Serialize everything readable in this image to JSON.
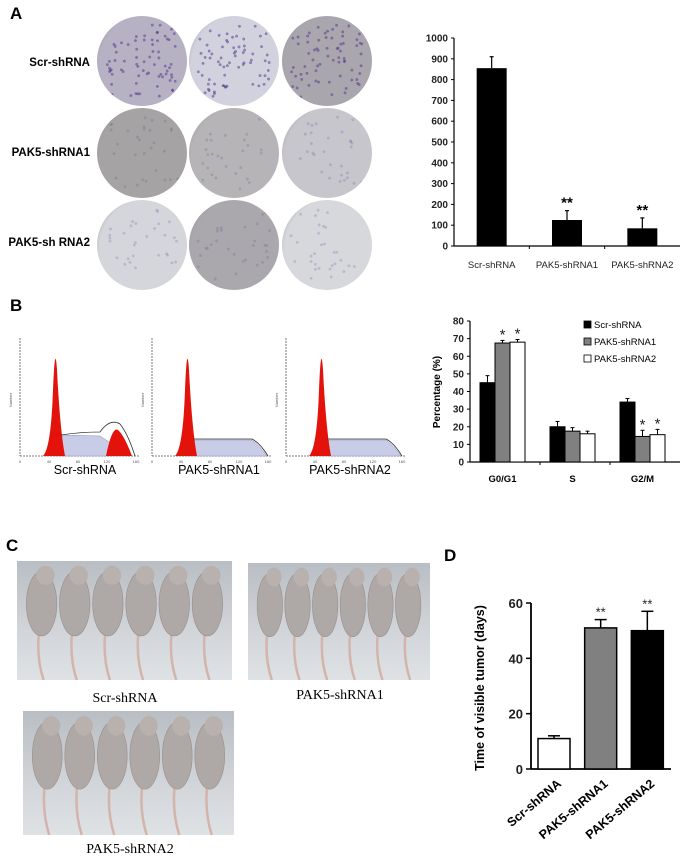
{
  "figure": {
    "panels": {
      "A": {
        "letter": "A",
        "row_labels": [
          "Scr-shRNA",
          "PAK5-shRNA1",
          "PAK5-sh RNA2"
        ],
        "dish_tones": [
          [
            "#b7b1c4",
            "#d2d2de",
            "#a9a6ae"
          ],
          [
            "#a6a3a5",
            "#b6b4b6",
            "#c6c6cc"
          ],
          [
            "#d4d6db",
            "#aaa8ac",
            "#d6d8dc"
          ]
        ]
      },
      "B": {
        "letter": "B",
        "histogram_labels": [
          "Scr-shRNA",
          "PAK5-shRNA1",
          "PAK5-shRNA2"
        ],
        "histogram_axis": {
          "x_ticks": [
            "0",
            "40",
            "80",
            "120",
            "160"
          ],
          "xlabel": "Channels (FL2-A)",
          "ylabel": "Number"
        }
      },
      "C": {
        "letter": "C",
        "photo_labels": [
          "Scr-shRNA",
          "PAK5-shRNA1",
          "PAK5-shRNA2"
        ]
      },
      "D": {
        "letter": "D"
      }
    }
  },
  "chart_data": [
    {
      "panel": "A",
      "type": "bar",
      "title": "",
      "categories": [
        "Scr-shRNA",
        "PAK5-shRNA1",
        "PAK5-shRNA2"
      ],
      "values": [
        855,
        125,
        85
      ],
      "error_upper": [
        910,
        170,
        135
      ],
      "significance": [
        "",
        "**",
        "**"
      ],
      "xlabel": "",
      "ylabel": "",
      "ylim": [
        0,
        1000
      ],
      "yticks": [
        "0",
        "100",
        "200",
        "300",
        "400",
        "500",
        "600",
        "700",
        "800",
        "900",
        "1000"
      ],
      "bar_color": "#000000",
      "grid": false
    },
    {
      "panel": "B",
      "type": "bar",
      "title": "",
      "categories": [
        "G0/G1",
        "S",
        "G2/M"
      ],
      "series": [
        {
          "name": "Scr-shRNA",
          "values": [
            45,
            20,
            34
          ],
          "error_upper": [
            49,
            23,
            36
          ],
          "color": "#000000"
        },
        {
          "name": "PAK5-shRNA1",
          "values": [
            67.5,
            17.5,
            14.5
          ],
          "error_upper": [
            69,
            19.5,
            18
          ],
          "color": "#808080"
        },
        {
          "name": "PAK5-shRNA2",
          "values": [
            68,
            16,
            15.5
          ],
          "error_upper": [
            69.5,
            17.5,
            18.5
          ],
          "color": "#ffffff"
        }
      ],
      "significance": {
        "G0/G1": [
          "",
          "*",
          "*"
        ],
        "S": [
          "",
          "",
          ""
        ],
        "G2/M": [
          "",
          "*",
          "*"
        ]
      },
      "xlabel": "",
      "ylabel": "Percentage (%)",
      "ylim": [
        0,
        80
      ],
      "yticks": [
        "0",
        "10",
        "20",
        "30",
        "40",
        "50",
        "60",
        "70",
        "80"
      ],
      "legend_position": "upper right",
      "grid": false
    },
    {
      "panel": "D",
      "type": "bar",
      "title": "",
      "categories": [
        "Scr-shRNA",
        "PAK5-shRNA1",
        "PAK5-shRNA2"
      ],
      "values": [
        11,
        51,
        50
      ],
      "error_upper": [
        12,
        54,
        57
      ],
      "colors": [
        "#ffffff",
        "#808080",
        "#000000"
      ],
      "significance": [
        "",
        "**",
        "**"
      ],
      "xlabel": "",
      "ylabel": "Time of visible tumor (days)",
      "ylim": [
        0,
        60
      ],
      "yticks": [
        "0",
        "20",
        "40",
        "60"
      ],
      "grid": false
    }
  ]
}
